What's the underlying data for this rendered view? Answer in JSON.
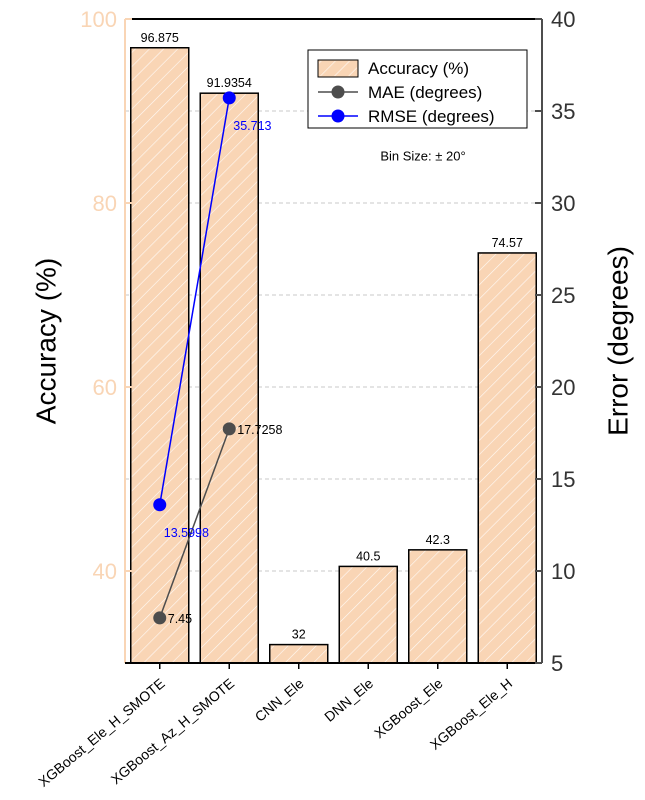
{
  "chart_data": {
    "type": "bar",
    "categories": [
      "XGBoost_Ele_H_SMOTE",
      "XGBoost_Az_H_SMOTE",
      "CNN_Ele",
      "DNN_Ele",
      "XGBoost_Ele",
      "XGBoost_Ele_H"
    ],
    "series": [
      {
        "name": "Accuracy (%)",
        "type": "bar",
        "color": "#f9d5b5",
        "values": [
          96.875,
          91.9354,
          32,
          40.5,
          42.3,
          74.57
        ]
      },
      {
        "name": "MAE (degrees)",
        "type": "line",
        "axis": "y2",
        "color": "#4d4d4d",
        "values": [
          7.45,
          17.7258,
          null,
          null,
          null,
          null
        ]
      },
      {
        "name": "RMSE (degrees)",
        "type": "line",
        "axis": "y2",
        "color": "#0000ff",
        "values": [
          13.5998,
          35.713,
          null,
          null,
          null,
          null
        ]
      }
    ],
    "ylabel": "Accuracy (%)",
    "y2label": "Error (degrees)",
    "annotation": "Bin Size: ± 20°",
    "ylim": [
      30,
      100
    ],
    "yticks": [
      40,
      60,
      80,
      100
    ],
    "y2lim": [
      5,
      40
    ],
    "y2ticks": [
      5,
      10,
      15,
      20,
      25,
      30,
      35,
      40
    ],
    "grid": true,
    "legend": "upper right"
  }
}
